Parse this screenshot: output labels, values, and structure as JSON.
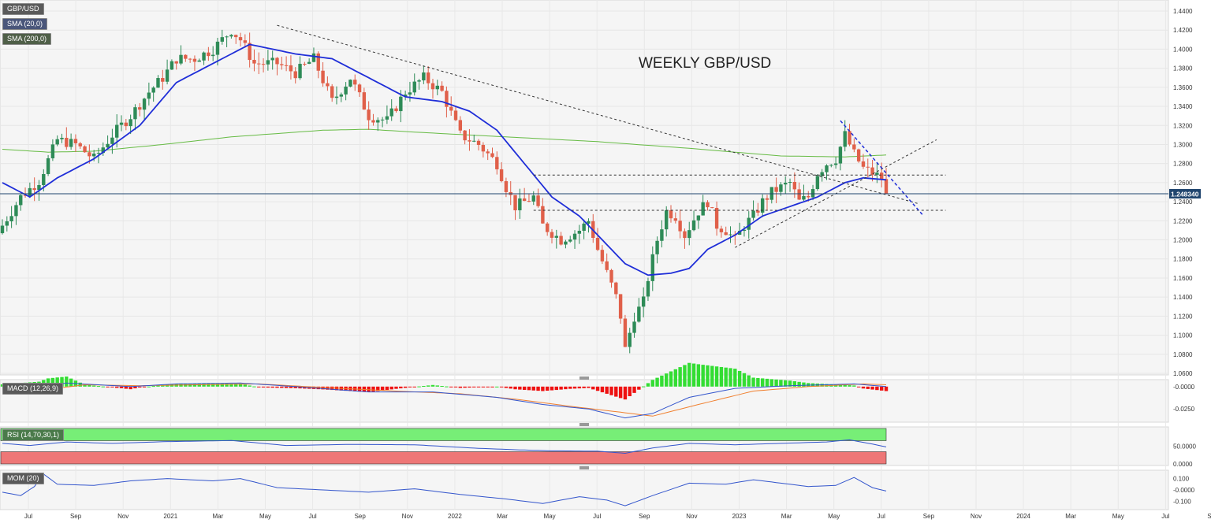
{
  "chart_data": {
    "type": "candlestick",
    "title": "WEEKLY GBP/USD",
    "symbol": "GBP/USD",
    "timeframe": "weekly",
    "current_price": "1.248340",
    "current_price_value": 1.24834,
    "colors": {
      "up": "#2e8b57",
      "down": "#e0604a",
      "sma20": "#1f2ed8",
      "sma200": "#66bb44",
      "price_line": "#20456e",
      "macd": "#3355cc",
      "signal": "#f08030",
      "hist_pos": "#33dd33",
      "hist_neg": "#ee1111",
      "rsi_high": "#77ee77",
      "rsi_low": "#ee7777"
    },
    "indicators": [
      "GBP/USD",
      "SMA (20,0)",
      "SMA (200,0)"
    ],
    "x_ticks": [
      "Jul",
      "Sep",
      "Nov",
      "2021",
      "Mar",
      "May",
      "Jul",
      "Sep",
      "Nov",
      "2022",
      "Mar",
      "May",
      "Jul",
      "Sep",
      "Nov",
      "2023",
      "Mar",
      "May",
      "Jul",
      "Sep",
      "Nov",
      "2024",
      "Mar",
      "May",
      "Jul",
      "Sep"
    ],
    "y_axis": {
      "min": 1.06,
      "max": 1.44,
      "ticks": [
        "1.4400",
        "1.4200",
        "1.4000",
        "1.3800",
        "1.3600",
        "1.3400",
        "1.3200",
        "1.3000",
        "1.2800",
        "1.2600",
        "1.2400",
        "1.2200",
        "1.2000",
        "1.1800",
        "1.1600",
        "1.1400",
        "1.1200",
        "1.1000",
        "1.0800",
        "1.0600"
      ]
    },
    "weekly_close_anchors": [
      {
        "week": 0,
        "close": 1.215
      },
      {
        "week": 4,
        "close": 1.245
      },
      {
        "week": 8,
        "close": 1.262
      },
      {
        "week": 12,
        "close": 1.305
      },
      {
        "week": 16,
        "close": 1.3
      },
      {
        "week": 20,
        "close": 1.285
      },
      {
        "week": 24,
        "close": 1.31
      },
      {
        "week": 28,
        "close": 1.33
      },
      {
        "week": 32,
        "close": 1.355
      },
      {
        "week": 35,
        "close": 1.37
      },
      {
        "week": 38,
        "close": 1.39
      },
      {
        "week": 42,
        "close": 1.39
      },
      {
        "week": 46,
        "close": 1.4
      },
      {
        "week": 50,
        "close": 1.42
      },
      {
        "week": 52,
        "close": 1.41
      },
      {
        "week": 55,
        "close": 1.385
      },
      {
        "week": 60,
        "close": 1.385
      },
      {
        "week": 64,
        "close": 1.375
      },
      {
        "week": 68,
        "close": 1.39
      },
      {
        "week": 72,
        "close": 1.345
      },
      {
        "week": 76,
        "close": 1.37
      },
      {
        "week": 80,
        "close": 1.33
      },
      {
        "week": 84,
        "close": 1.325
      },
      {
        "week": 88,
        "close": 1.355
      },
      {
        "week": 92,
        "close": 1.37
      },
      {
        "week": 96,
        "close": 1.355
      },
      {
        "week": 100,
        "close": 1.31
      },
      {
        "week": 104,
        "close": 1.3
      },
      {
        "week": 108,
        "close": 1.28
      },
      {
        "week": 110,
        "close": 1.255
      },
      {
        "week": 112,
        "close": 1.235
      },
      {
        "week": 116,
        "close": 1.245
      },
      {
        "week": 118,
        "close": 1.215
      },
      {
        "week": 122,
        "close": 1.2
      },
      {
        "week": 126,
        "close": 1.21
      },
      {
        "week": 128,
        "close": 1.22
      },
      {
        "week": 130,
        "close": 1.19
      },
      {
        "week": 132,
        "close": 1.165
      },
      {
        "week": 134,
        "close": 1.14
      },
      {
        "week": 135,
        "close": 1.12
      },
      {
        "week": 136,
        "close": 1.085
      },
      {
        "week": 138,
        "close": 1.12
      },
      {
        "week": 140,
        "close": 1.135
      },
      {
        "week": 141,
        "close": 1.16
      },
      {
        "week": 143,
        "close": 1.2
      },
      {
        "week": 145,
        "close": 1.23
      },
      {
        "week": 147,
        "close": 1.225
      },
      {
        "week": 149,
        "close": 1.205
      },
      {
        "week": 152,
        "close": 1.23
      },
      {
        "week": 154,
        "close": 1.24
      },
      {
        "week": 156,
        "close": 1.215
      },
      {
        "week": 158,
        "close": 1.21
      },
      {
        "week": 160,
        "close": 1.2
      },
      {
        "week": 162,
        "close": 1.215
      },
      {
        "week": 164,
        "close": 1.225
      },
      {
        "week": 166,
        "close": 1.24
      },
      {
        "week": 168,
        "close": 1.25
      },
      {
        "week": 170,
        "close": 1.255
      },
      {
        "week": 172,
        "close": 1.26
      },
      {
        "week": 174,
        "close": 1.24
      },
      {
        "week": 176,
        "close": 1.245
      },
      {
        "week": 178,
        "close": 1.27
      },
      {
        "week": 180,
        "close": 1.28
      },
      {
        "week": 182,
        "close": 1.285
      },
      {
        "week": 184,
        "close": 1.31
      },
      {
        "week": 186,
        "close": 1.29
      },
      {
        "week": 188,
        "close": 1.275
      },
      {
        "week": 190,
        "close": 1.27
      },
      {
        "week": 192,
        "close": 1.265
      },
      {
        "week": 193,
        "close": 1.248
      }
    ],
    "sma20_anchors": [
      {
        "week": 0,
        "value": 1.26
      },
      {
        "week": 6,
        "value": 1.245
      },
      {
        "week": 12,
        "value": 1.265
      },
      {
        "week": 20,
        "value": 1.285
      },
      {
        "week": 30,
        "value": 1.32
      },
      {
        "week": 38,
        "value": 1.365
      },
      {
        "week": 46,
        "value": 1.385
      },
      {
        "week": 54,
        "value": 1.405
      },
      {
        "week": 64,
        "value": 1.395
      },
      {
        "week": 72,
        "value": 1.39
      },
      {
        "week": 80,
        "value": 1.37
      },
      {
        "week": 88,
        "value": 1.35
      },
      {
        "week": 96,
        "value": 1.345
      },
      {
        "week": 102,
        "value": 1.335
      },
      {
        "week": 108,
        "value": 1.315
      },
      {
        "week": 114,
        "value": 1.28
      },
      {
        "week": 120,
        "value": 1.245
      },
      {
        "week": 126,
        "value": 1.225
      },
      {
        "week": 132,
        "value": 1.195
      },
      {
        "week": 136,
        "value": 1.175
      },
      {
        "week": 141,
        "value": 1.163
      },
      {
        "week": 146,
        "value": 1.165
      },
      {
        "week": 150,
        "value": 1.17
      },
      {
        "week": 154,
        "value": 1.19
      },
      {
        "week": 160,
        "value": 1.205
      },
      {
        "week": 166,
        "value": 1.225
      },
      {
        "week": 172,
        "value": 1.235
      },
      {
        "week": 178,
        "value": 1.245
      },
      {
        "week": 184,
        "value": 1.26
      },
      {
        "week": 188,
        "value": 1.265
      },
      {
        "week": 193,
        "value": 1.263
      }
    ],
    "sma200_anchors": [
      {
        "week": 0,
        "value": 1.295
      },
      {
        "week": 10,
        "value": 1.292
      },
      {
        "week": 20,
        "value": 1.293
      },
      {
        "week": 35,
        "value": 1.3
      },
      {
        "week": 50,
        "value": 1.308
      },
      {
        "week": 70,
        "value": 1.315
      },
      {
        "week": 80,
        "value": 1.316
      },
      {
        "week": 90,
        "value": 1.313
      },
      {
        "week": 110,
        "value": 1.308
      },
      {
        "week": 130,
        "value": 1.303
      },
      {
        "week": 150,
        "value": 1.296
      },
      {
        "week": 170,
        "value": 1.288
      },
      {
        "week": 184,
        "value": 1.287
      },
      {
        "week": 193,
        "value": 1.289
      }
    ],
    "macd": {
      "label": "MACD (12,26,9)",
      "ticks": [
        "-0.0000",
        "-0.0250"
      ],
      "y_range": [
        -0.038,
        0.006
      ],
      "macd_anchors": [
        {
          "week": 0,
          "value": -0.003
        },
        {
          "week": 8,
          "value": -0.001
        },
        {
          "week": 14,
          "value": 0.004
        },
        {
          "week": 28,
          "value": 0.0
        },
        {
          "week": 38,
          "value": 0.003
        },
        {
          "week": 52,
          "value": 0.004
        },
        {
          "week": 64,
          "value": 0.0
        },
        {
          "week": 80,
          "value": -0.006
        },
        {
          "week": 94,
          "value": -0.006
        },
        {
          "week": 108,
          "value": -0.012
        },
        {
          "week": 118,
          "value": -0.02
        },
        {
          "week": 128,
          "value": -0.025
        },
        {
          "week": 136,
          "value": -0.035
        },
        {
          "week": 142,
          "value": -0.03
        },
        {
          "week": 150,
          "value": -0.012
        },
        {
          "week": 160,
          "value": -0.002
        },
        {
          "week": 172,
          "value": 0.001
        },
        {
          "week": 186,
          "value": 0.003
        },
        {
          "week": 193,
          "value": 0.0
        }
      ],
      "signal_anchors": [
        {
          "week": 0,
          "value": -0.004
        },
        {
          "week": 10,
          "value": -0.003
        },
        {
          "week": 18,
          "value": 0.002
        },
        {
          "week": 30,
          "value": 0.001
        },
        {
          "week": 42,
          "value": 0.002
        },
        {
          "week": 56,
          "value": 0.003
        },
        {
          "week": 70,
          "value": -0.001
        },
        {
          "week": 86,
          "value": -0.005
        },
        {
          "week": 100,
          "value": -0.008
        },
        {
          "week": 112,
          "value": -0.014
        },
        {
          "week": 124,
          "value": -0.022
        },
        {
          "week": 134,
          "value": -0.028
        },
        {
          "week": 142,
          "value": -0.033
        },
        {
          "week": 152,
          "value": -0.02
        },
        {
          "week": 164,
          "value": -0.005
        },
        {
          "week": 176,
          "value": 0.0
        },
        {
          "week": 188,
          "value": 0.003
        },
        {
          "week": 193,
          "value": 0.002
        }
      ]
    },
    "rsi": {
      "label": "RSI (14,70,30,1)",
      "ticks": [
        "50.0000",
        "0.0000"
      ],
      "y_range": [
        0,
        100
      ],
      "overbought": 70,
      "oversold": 30,
      "rsi_anchors": [
        {
          "week": 0,
          "value": 58
        },
        {
          "week": 6,
          "value": 52
        },
        {
          "week": 14,
          "value": 62
        },
        {
          "week": 24,
          "value": 58
        },
        {
          "week": 36,
          "value": 63
        },
        {
          "week": 50,
          "value": 66
        },
        {
          "week": 62,
          "value": 52
        },
        {
          "week": 76,
          "value": 55
        },
        {
          "week": 90,
          "value": 54
        },
        {
          "week": 104,
          "value": 44
        },
        {
          "week": 112,
          "value": 40
        },
        {
          "week": 120,
          "value": 37
        },
        {
          "week": 130,
          "value": 36
        },
        {
          "week": 136,
          "value": 30
        },
        {
          "week": 142,
          "value": 45
        },
        {
          "week": 150,
          "value": 58
        },
        {
          "week": 160,
          "value": 54
        },
        {
          "week": 170,
          "value": 58
        },
        {
          "week": 180,
          "value": 62
        },
        {
          "week": 185,
          "value": 68
        },
        {
          "week": 190,
          "value": 56
        },
        {
          "week": 193,
          "value": 48
        }
      ]
    },
    "mom": {
      "label": "MOM (20)",
      "ticks": [
        "0.100",
        "-0.0000",
        "-0.100"
      ],
      "y_range": [
        -0.16,
        0.16
      ],
      "mom_anchors": [
        {
          "week": 0,
          "value": -0.02
        },
        {
          "week": 4,
          "value": -0.05
        },
        {
          "week": 7,
          "value": 0.03
        },
        {
          "week": 9,
          "value": 0.14
        },
        {
          "week": 12,
          "value": 0.05
        },
        {
          "week": 20,
          "value": 0.04
        },
        {
          "week": 28,
          "value": 0.08
        },
        {
          "week": 36,
          "value": 0.1
        },
        {
          "week": 46,
          "value": 0.08
        },
        {
          "week": 52,
          "value": 0.1
        },
        {
          "week": 60,
          "value": 0.02
        },
        {
          "week": 70,
          "value": 0.0
        },
        {
          "week": 80,
          "value": -0.02
        },
        {
          "week": 90,
          "value": 0.01
        },
        {
          "week": 100,
          "value": -0.04
        },
        {
          "week": 110,
          "value": -0.08
        },
        {
          "week": 118,
          "value": -0.12
        },
        {
          "week": 126,
          "value": -0.06
        },
        {
          "week": 132,
          "value": -0.09
        },
        {
          "week": 136,
          "value": -0.14
        },
        {
          "week": 142,
          "value": -0.05
        },
        {
          "week": 150,
          "value": 0.06
        },
        {
          "week": 158,
          "value": 0.05
        },
        {
          "week": 164,
          "value": 0.09
        },
        {
          "week": 170,
          "value": 0.06
        },
        {
          "week": 176,
          "value": 0.03
        },
        {
          "week": 182,
          "value": 0.04
        },
        {
          "week": 186,
          "value": 0.11
        },
        {
          "week": 190,
          "value": 0.02
        },
        {
          "week": 193,
          "value": -0.01
        }
      ]
    }
  }
}
